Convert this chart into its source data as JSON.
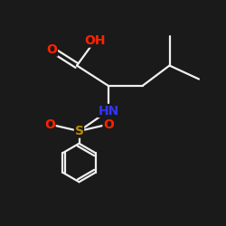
{
  "bg_color": "#1a1a1a",
  "bond_color": "#f0f0f0",
  "atom_colors": {
    "O": "#ff2200",
    "N": "#3333ff",
    "S": "#bb8800",
    "H": "#f0f0f0"
  },
  "lw": 1.6,
  "fontsize": 9
}
